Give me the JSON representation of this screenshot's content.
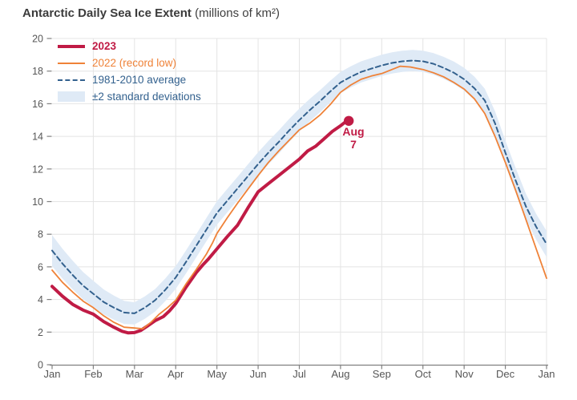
{
  "title": {
    "main": "Antarctic Daily Sea Ice Extent",
    "unit": "(millions of km²)"
  },
  "legend": {
    "items": [
      {
        "label": "2023",
        "color": "#c01b45",
        "style": "thick-line",
        "bold": true
      },
      {
        "label": "2022 (record low)",
        "color": "#ef8238",
        "style": "line",
        "bold": false
      },
      {
        "label": "1981-2010 average",
        "color": "#33618e",
        "style": "dashed-line",
        "bold": false
      },
      {
        "label": "±2 standard deviations",
        "color": "#dfeaf6",
        "style": "band",
        "bold": false,
        "text_color": "#33618e"
      }
    ]
  },
  "annotation": {
    "line1": "Aug",
    "line2": "7",
    "color": "#c01b45"
  },
  "colors": {
    "crimson": "#c01b45",
    "orange": "#ef8238",
    "blue": "#33618e",
    "band": "#dfeaf6",
    "grid": "#e4e4e4",
    "axis": "#808080",
    "tick_text": "#565656",
    "title_text": "#3b3b3b"
  },
  "chart_data": {
    "type": "line",
    "title": "Antarctic Daily Sea Ice Extent (millions of km²)",
    "x_unit": "months, Jan = 0",
    "x_tick_labels": [
      "Jan",
      "Feb",
      "Mar",
      "Apr",
      "May",
      "Jun",
      "Jul",
      "Aug",
      "Sep",
      "Oct",
      "Nov",
      "Dec",
      "Jan"
    ],
    "y_ticks": [
      0,
      2,
      4,
      6,
      8,
      10,
      12,
      14,
      16,
      18,
      20
    ],
    "xlim": [
      0,
      12
    ],
    "ylim": [
      0,
      20
    ],
    "grid": true,
    "legend_position": "top-left-inside",
    "series": [
      {
        "name": "2023",
        "color": "#c01b45",
        "width": 4,
        "dash": null,
        "points": [
          [
            0,
            4.8
          ],
          [
            0.25,
            4.2
          ],
          [
            0.5,
            3.7
          ],
          [
            0.75,
            3.35
          ],
          [
            1,
            3.1
          ],
          [
            1.25,
            2.65
          ],
          [
            1.5,
            2.3
          ],
          [
            1.7,
            2.05
          ],
          [
            1.85,
            1.95
          ],
          [
            2,
            1.97
          ],
          [
            2.15,
            2.1
          ],
          [
            2.3,
            2.35
          ],
          [
            2.5,
            2.7
          ],
          [
            2.7,
            2.95
          ],
          [
            2.85,
            3.3
          ],
          [
            3,
            3.75
          ],
          [
            3.25,
            4.75
          ],
          [
            3.5,
            5.65
          ],
          [
            3.65,
            6.1
          ],
          [
            3.8,
            6.5
          ],
          [
            4,
            7.1
          ],
          [
            4.25,
            7.85
          ],
          [
            4.5,
            8.55
          ],
          [
            4.75,
            9.6
          ],
          [
            5,
            10.6
          ],
          [
            5.25,
            11.1
          ],
          [
            5.5,
            11.6
          ],
          [
            5.75,
            12.1
          ],
          [
            6,
            12.6
          ],
          [
            6.2,
            13.1
          ],
          [
            6.4,
            13.4
          ],
          [
            6.6,
            13.85
          ],
          [
            6.8,
            14.3
          ],
          [
            7,
            14.65
          ],
          [
            7.1,
            14.85
          ],
          [
            7.2,
            14.95
          ]
        ]
      },
      {
        "name": "2022 (record low)",
        "color": "#ef8238",
        "width": 1.8,
        "dash": null,
        "points": [
          [
            0,
            5.8
          ],
          [
            0.25,
            5.05
          ],
          [
            0.5,
            4.45
          ],
          [
            0.75,
            3.9
          ],
          [
            1,
            3.5
          ],
          [
            1.25,
            3.0
          ],
          [
            1.5,
            2.6
          ],
          [
            1.75,
            2.3
          ],
          [
            2,
            2.25
          ],
          [
            2.2,
            2.2
          ],
          [
            2.4,
            2.6
          ],
          [
            2.6,
            3.1
          ],
          [
            2.8,
            3.5
          ],
          [
            3,
            3.95
          ],
          [
            3.25,
            4.95
          ],
          [
            3.5,
            5.85
          ],
          [
            3.75,
            6.8
          ],
          [
            3.9,
            7.5
          ],
          [
            4,
            8.05
          ],
          [
            4.25,
            9.0
          ],
          [
            4.5,
            9.9
          ],
          [
            4.75,
            10.75
          ],
          [
            5,
            11.6
          ],
          [
            5.25,
            12.4
          ],
          [
            5.5,
            13.1
          ],
          [
            5.75,
            13.75
          ],
          [
            6,
            14.4
          ],
          [
            6.25,
            14.8
          ],
          [
            6.5,
            15.3
          ],
          [
            6.75,
            15.95
          ],
          [
            7,
            16.7
          ],
          [
            7.25,
            17.15
          ],
          [
            7.5,
            17.5
          ],
          [
            7.75,
            17.7
          ],
          [
            8,
            17.85
          ],
          [
            8.25,
            18.1
          ],
          [
            8.45,
            18.3
          ],
          [
            8.7,
            18.25
          ],
          [
            9,
            18.1
          ],
          [
            9.25,
            17.9
          ],
          [
            9.5,
            17.65
          ],
          [
            9.75,
            17.3
          ],
          [
            10,
            16.9
          ],
          [
            10.25,
            16.3
          ],
          [
            10.5,
            15.4
          ],
          [
            10.75,
            14.0
          ],
          [
            11,
            12.4
          ],
          [
            11.25,
            10.7
          ],
          [
            11.5,
            8.9
          ],
          [
            11.75,
            7.1
          ],
          [
            12,
            5.3
          ]
        ]
      },
      {
        "name": "1981-2010 average",
        "color": "#33618e",
        "width": 2,
        "dash": "6 4",
        "points": [
          [
            0,
            7.0
          ],
          [
            0.25,
            6.2
          ],
          [
            0.5,
            5.5
          ],
          [
            0.75,
            4.85
          ],
          [
            1,
            4.35
          ],
          [
            1.25,
            3.85
          ],
          [
            1.5,
            3.5
          ],
          [
            1.75,
            3.2
          ],
          [
            2,
            3.15
          ],
          [
            2.25,
            3.5
          ],
          [
            2.5,
            3.95
          ],
          [
            2.75,
            4.6
          ],
          [
            3,
            5.35
          ],
          [
            3.25,
            6.3
          ],
          [
            3.5,
            7.3
          ],
          [
            3.75,
            8.3
          ],
          [
            4,
            9.3
          ],
          [
            4.25,
            10.05
          ],
          [
            4.5,
            10.8
          ],
          [
            4.75,
            11.55
          ],
          [
            5,
            12.3
          ],
          [
            5.25,
            13.0
          ],
          [
            5.5,
            13.65
          ],
          [
            5.75,
            14.35
          ],
          [
            6,
            15.0
          ],
          [
            6.25,
            15.6
          ],
          [
            6.5,
            16.15
          ],
          [
            6.75,
            16.75
          ],
          [
            7,
            17.3
          ],
          [
            7.25,
            17.65
          ],
          [
            7.5,
            17.95
          ],
          [
            7.75,
            18.15
          ],
          [
            8,
            18.35
          ],
          [
            8.25,
            18.5
          ],
          [
            8.5,
            18.6
          ],
          [
            8.75,
            18.65
          ],
          [
            9,
            18.6
          ],
          [
            9.25,
            18.45
          ],
          [
            9.5,
            18.2
          ],
          [
            9.75,
            17.9
          ],
          [
            10,
            17.5
          ],
          [
            10.25,
            16.95
          ],
          [
            10.5,
            16.2
          ],
          [
            10.75,
            14.8
          ],
          [
            11,
            13.0
          ],
          [
            11.25,
            11.3
          ],
          [
            11.5,
            9.7
          ],
          [
            11.75,
            8.45
          ],
          [
            12,
            7.4
          ]
        ]
      }
    ],
    "band": {
      "name": "±2 standard deviations",
      "basis": "1981-2010 average",
      "color": "#dfeaf6",
      "half_width_by_month": [
        [
          0,
          0.95
        ],
        [
          1,
          0.8
        ],
        [
          2,
          0.68
        ],
        [
          3,
          0.7
        ],
        [
          4,
          0.72
        ],
        [
          5,
          0.72
        ],
        [
          6,
          0.7
        ],
        [
          7,
          0.65
        ],
        [
          8,
          0.65
        ],
        [
          9,
          0.65
        ],
        [
          10,
          0.7
        ],
        [
          11,
          0.75
        ],
        [
          12,
          0.8
        ]
      ]
    },
    "end_marker": {
      "series": "2023",
      "x": 7.2,
      "y": 14.95,
      "radius": 6.2,
      "label": "Aug 7"
    }
  }
}
